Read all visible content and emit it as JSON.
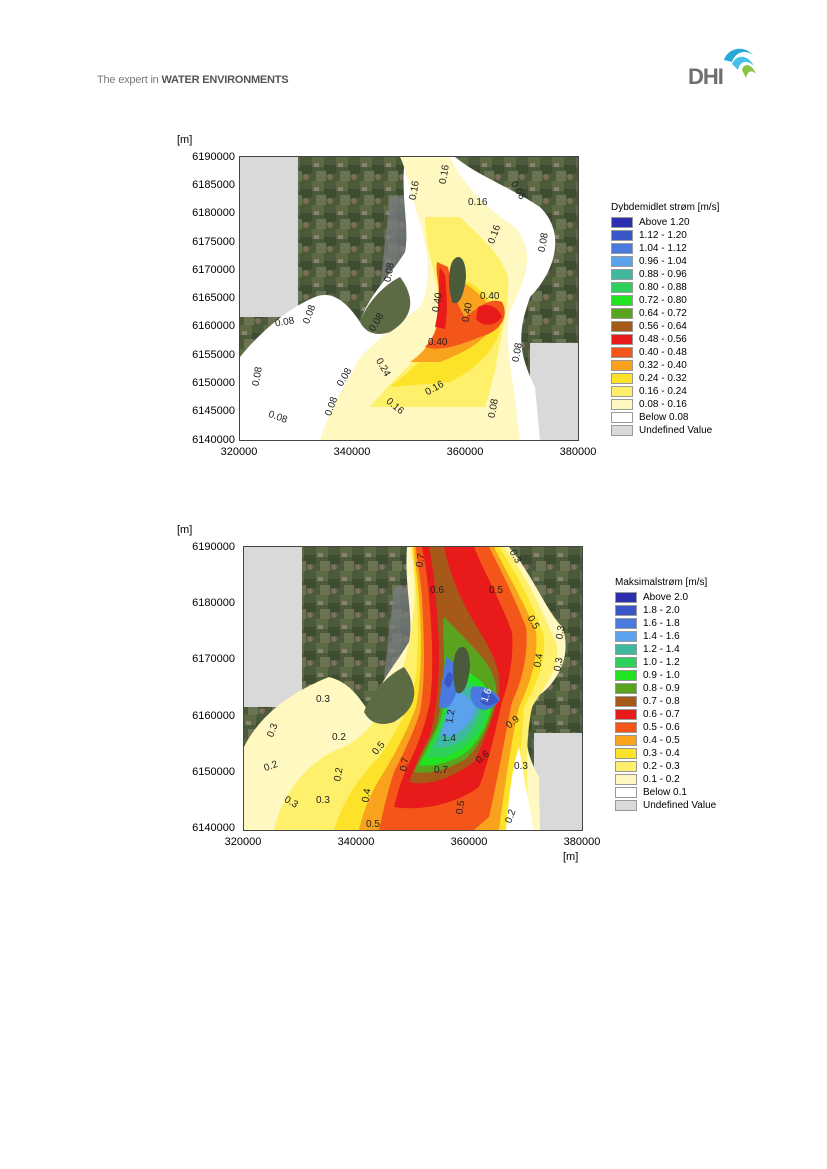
{
  "header": {
    "tagline_plain": "The expert in ",
    "tagline_bold": "WATER ENVIRONMENTS",
    "logo_text": "DHI"
  },
  "map1": {
    "y_unit": "[m]",
    "y_ticks": [
      "6190000",
      "6185000",
      "6180000",
      "6175000",
      "6170000",
      "6165000",
      "6160000",
      "6155000",
      "6150000",
      "6145000",
      "6140000"
    ],
    "x_ticks": [
      "320000",
      "340000",
      "360000",
      "380000"
    ],
    "legend_title": "Dybdemidlet strøm [m/s]",
    "legend": [
      {
        "label": "Above 1.20",
        "color": "#2b2fb0"
      },
      {
        "label": "1.12 - 1.20",
        "color": "#3a57c8"
      },
      {
        "label": "1.04 - 1.12",
        "color": "#4a7ae0"
      },
      {
        "label": "0.96 - 1.04",
        "color": "#5aa2ee"
      },
      {
        "label": "0.88 - 0.96",
        "color": "#3fb8a0"
      },
      {
        "label": "0.80 - 0.88",
        "color": "#2ecf5a"
      },
      {
        "label": "0.72 - 0.80",
        "color": "#22e322"
      },
      {
        "label": "0.64 - 0.72",
        "color": "#5aa31e"
      },
      {
        "label": "0.56 - 0.64",
        "color": "#a65a1a"
      },
      {
        "label": "0.48 - 0.56",
        "color": "#e81a1a"
      },
      {
        "label": "0.40 - 0.48",
        "color": "#f4561a"
      },
      {
        "label": "0.32 - 0.40",
        "color": "#f9a21e"
      },
      {
        "label": "0.24 - 0.32",
        "color": "#fde22a"
      },
      {
        "label": "0.16 - 0.24",
        "color": "#fef06a"
      },
      {
        "label": "0.08 - 0.16",
        "color": "#fff8c0"
      },
      {
        "label": "Below  0.08",
        "color": "#ffffff"
      },
      {
        "label": "Undefined Value",
        "color": "#d9d9d9"
      }
    ],
    "contour_labels": [
      "0.16",
      "0.16",
      "0.08",
      "0.16",
      "0.16",
      "0.08",
      "0.08",
      "0.08",
      "0.08",
      "0.08",
      "0.40",
      "0.40",
      "0.40",
      "0.40",
      "0.08",
      "0.24",
      "0.16",
      "0.16",
      "0.08",
      "0.08",
      "0.08",
      "0.08",
      "0.08"
    ]
  },
  "map2": {
    "y_unit": "[m]",
    "x_unit": "[m]",
    "y_ticks": [
      "6190000",
      "6180000",
      "6170000",
      "6160000",
      "6150000",
      "6140000"
    ],
    "x_ticks": [
      "320000",
      "340000",
      "360000",
      "380000"
    ],
    "legend_title": "Maksimalstrøm [m/s]",
    "legend": [
      {
        "label": "Above 2.0",
        "color": "#2b2fb0"
      },
      {
        "label": "1.8 - 2.0",
        "color": "#3a57c8"
      },
      {
        "label": "1.6 - 1.8",
        "color": "#4a7ae0"
      },
      {
        "label": "1.4 - 1.6",
        "color": "#5aa2ee"
      },
      {
        "label": "1.2 - 1.4",
        "color": "#3fb8a0"
      },
      {
        "label": "1.0 - 1.2",
        "color": "#2ecf5a"
      },
      {
        "label": "0.9 - 1.0",
        "color": "#22e322"
      },
      {
        "label": "0.8 - 0.9",
        "color": "#5aa31e"
      },
      {
        "label": "0.7 - 0.8",
        "color": "#a65a1a"
      },
      {
        "label": "0.6 - 0.7",
        "color": "#e81a1a"
      },
      {
        "label": "0.5 - 0.6",
        "color": "#f4561a"
      },
      {
        "label": "0.4 - 0.5",
        "color": "#f9a21e"
      },
      {
        "label": "0.3 - 0.4",
        "color": "#fde22a"
      },
      {
        "label": "0.2 - 0.3",
        "color": "#fef06a"
      },
      {
        "label": "0.1 - 0.2",
        "color": "#fff8c0"
      },
      {
        "label": "Below  0.1",
        "color": "#ffffff"
      },
      {
        "label": "Undefined Value",
        "color": "#d9d9d9"
      }
    ],
    "contour_labels": [
      "0.7",
      "0.6",
      "0.5",
      "0.3",
      "0.5",
      "0.3",
      "0.4",
      "0.3",
      "0.3",
      "0.2",
      "0.2",
      "0.3",
      "0.2",
      "0.5",
      "0.7",
      "1.2",
      "1.4",
      "0.7",
      "0.6",
      "0.9",
      "1.6",
      "0.4",
      "0.3",
      "0.5",
      "0.5",
      "0.2",
      "0.3",
      "0.3"
    ]
  }
}
